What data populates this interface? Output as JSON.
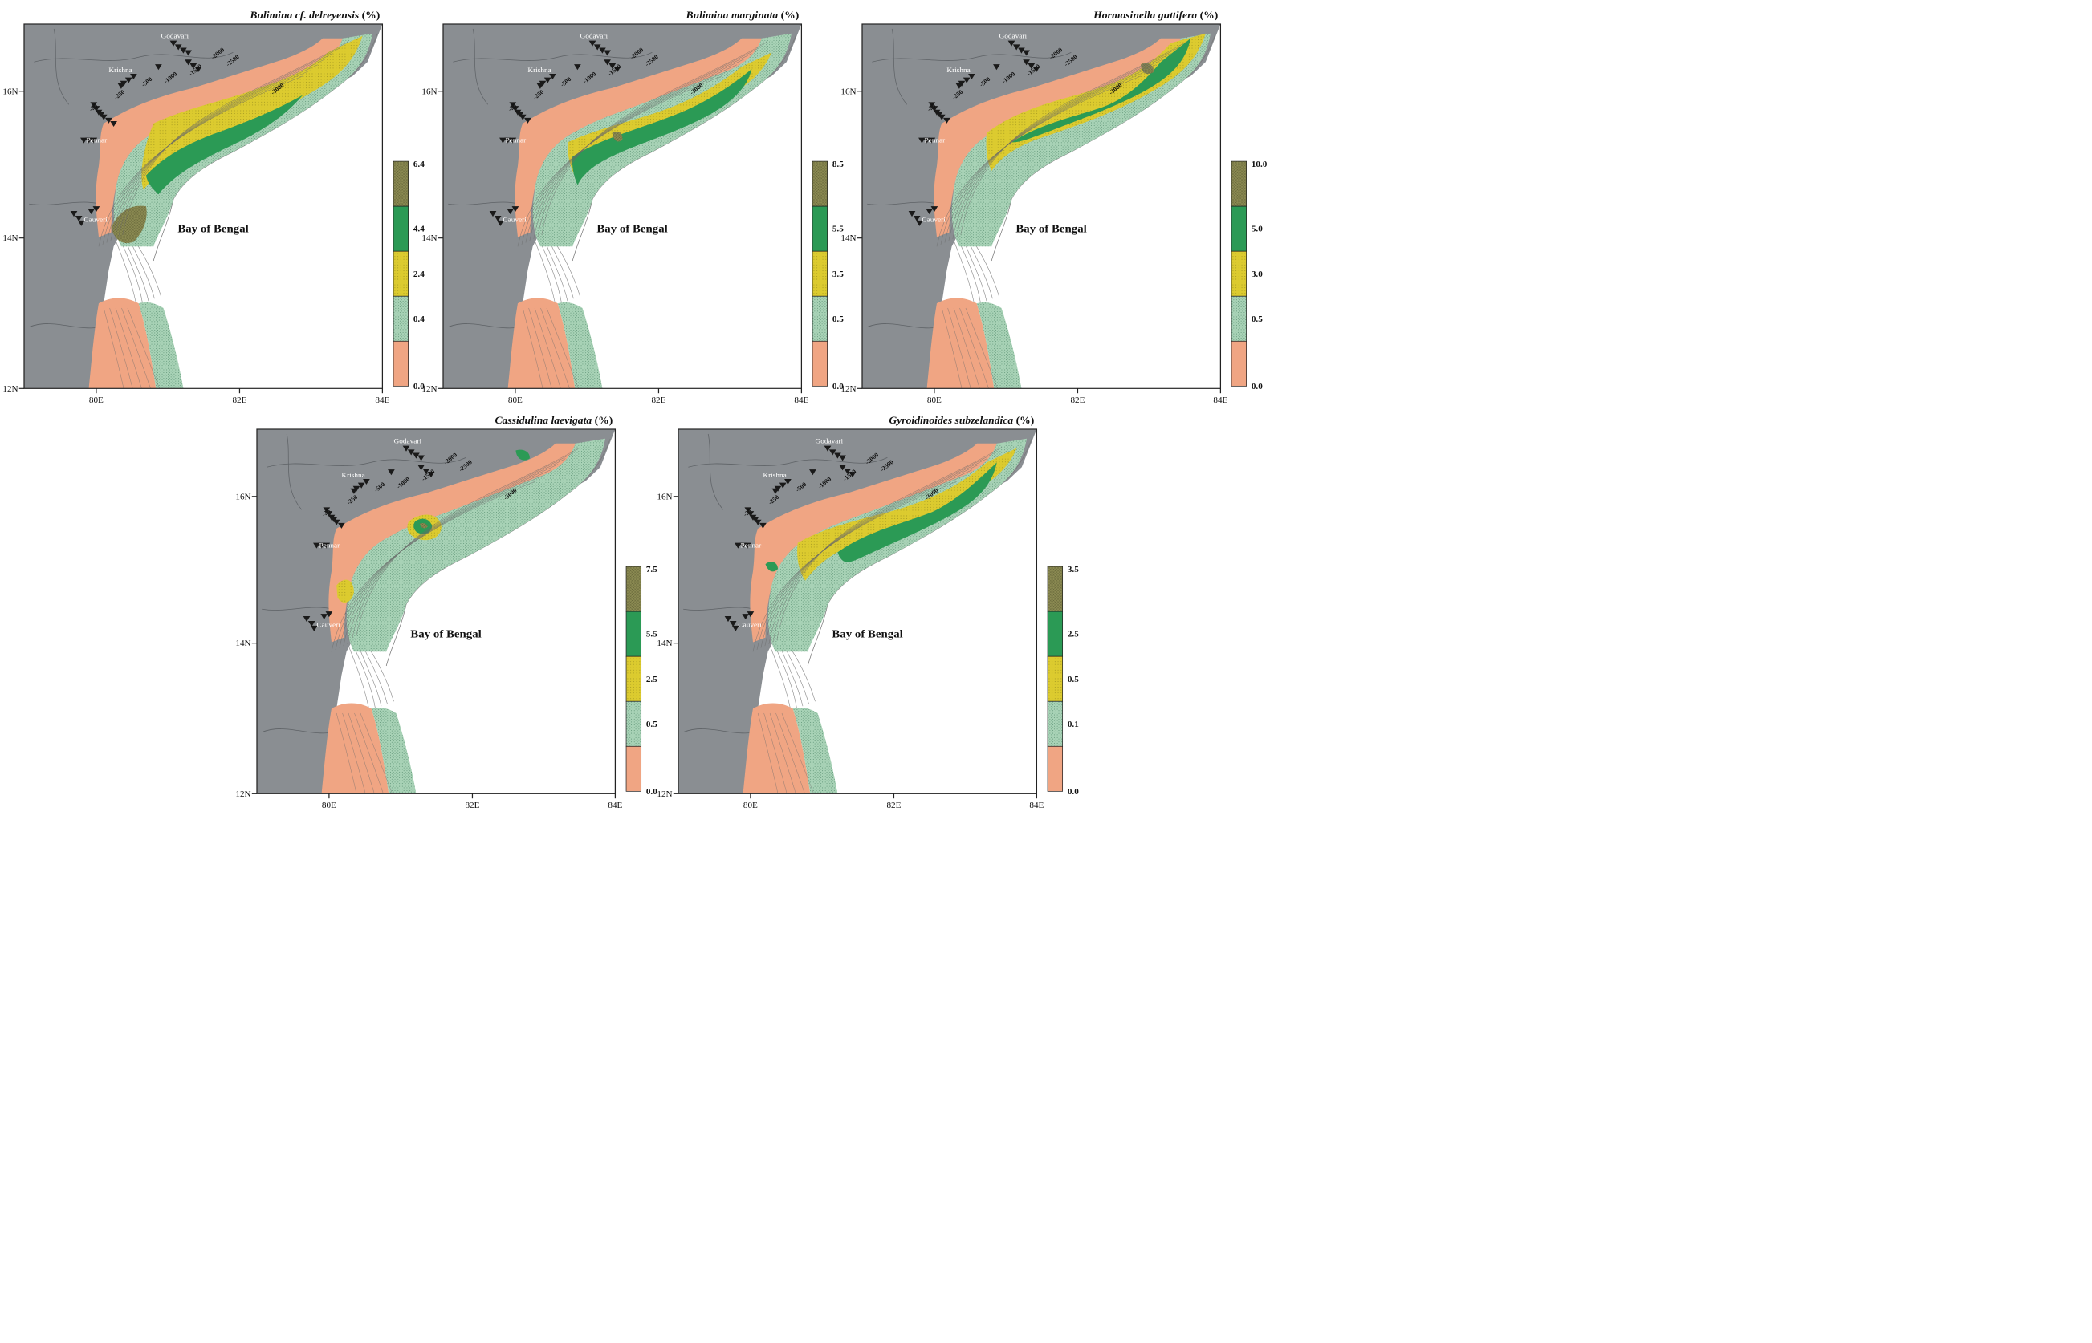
{
  "figure": {
    "panels": [
      {
        "id": "delreyensis",
        "title_genus": "Bulimina",
        "title_rest": "cf. delreyensis",
        "unit": "(%)",
        "legend": [
          "6.4",
          "4.4",
          "2.4",
          "0.4",
          "0.0"
        ]
      },
      {
        "id": "marginata",
        "title_genus": "Bulimina marginata",
        "title_rest": "",
        "unit": "(%)",
        "legend": [
          "8.5",
          "5.5",
          "3.5",
          "0.5",
          "0.0"
        ]
      },
      {
        "id": "guttifera",
        "title_genus": "Hormosinella guttifera",
        "title_rest": "",
        "unit": "(%)",
        "legend": [
          "10.0",
          "5.0",
          "3.0",
          "0.5",
          "0.0"
        ]
      },
      {
        "id": "laevigata",
        "title_genus": "Cassidulina laevigata",
        "title_rest": "",
        "unit": "(%)",
        "legend": [
          "7.5",
          "5.5",
          "2.5",
          "0.5",
          "0.0"
        ]
      },
      {
        "id": "subzelandica",
        "title_genus": "Gyroidinoides subzelandica",
        "title_rest": "",
        "unit": "(%)",
        "legend": [
          "3.5",
          "2.5",
          "0.5",
          "0.1",
          "0.0"
        ]
      }
    ],
    "sea_label": "Bay of Bengal",
    "rivers": [
      "Godavari",
      "Krishna",
      "Pennar",
      "Cauveri"
    ],
    "depth_labels": [
      "-25",
      "-250",
      "-500",
      "-1000",
      "-1500",
      "-2000",
      "-2500",
      "-3000"
    ],
    "lat_ticks": [
      "16N",
      "14N",
      "12N"
    ],
    "lon_ticks": [
      "80E",
      "82E",
      "84E"
    ],
    "colors": {
      "land": "#8a8e92",
      "sea": "#ffffff",
      "class0": "#f0a583",
      "class1": "#a9d3b7",
      "class2": "#dccb2f",
      "class3": "#2b9a55",
      "class4": "#8b8a52"
    }
  }
}
